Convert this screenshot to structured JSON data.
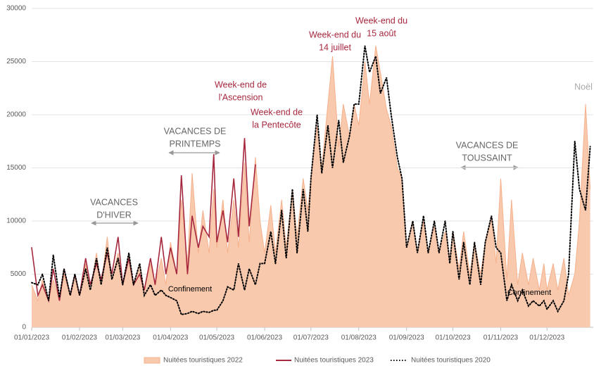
{
  "chart_data": {
    "type": "line",
    "x": [
      "01/01/2023",
      "05/01/2023",
      "08/01/2023",
      "12/01/2023",
      "15/01/2023",
      "19/01/2023",
      "22/01/2023",
      "26/01/2023",
      "29/01/2023",
      "01/02/2023",
      "05/02/2023",
      "08/02/2023",
      "12/02/2023",
      "15/02/2023",
      "19/02/2023",
      "22/02/2023",
      "26/02/2023",
      "01/03/2023",
      "05/03/2023",
      "08/03/2023",
      "12/03/2023",
      "15/03/2023",
      "19/03/2023",
      "22/03/2023",
      "26/03/2023",
      "29/03/2023",
      "01/04/2023",
      "05/04/2023",
      "08/04/2023",
      "12/04/2023",
      "15/04/2023",
      "19/04/2023",
      "22/04/2023",
      "26/04/2023",
      "29/04/2023",
      "01/05/2023",
      "05/05/2023",
      "08/05/2023",
      "12/05/2023",
      "15/05/2023",
      "19/05/2023",
      "22/05/2023",
      "26/05/2023",
      "29/05/2023",
      "01/06/2023",
      "05/06/2023",
      "08/06/2023",
      "12/06/2023",
      "15/06/2023",
      "19/06/2023",
      "22/06/2023",
      "26/06/2023",
      "29/06/2023",
      "01/07/2023",
      "05/07/2023",
      "08/07/2023",
      "12/07/2023",
      "15/07/2023",
      "19/07/2023",
      "22/07/2023",
      "26/07/2023",
      "29/07/2023",
      "01/08/2023",
      "05/08/2023",
      "08/08/2023",
      "12/08/2023",
      "15/08/2023",
      "19/08/2023",
      "22/08/2023",
      "26/08/2023",
      "29/08/2023",
      "01/09/2023",
      "05/09/2023",
      "08/09/2023",
      "12/09/2023",
      "15/09/2023",
      "19/09/2023",
      "22/09/2023",
      "26/09/2023",
      "29/09/2023",
      "01/10/2023",
      "05/10/2023",
      "08/10/2023",
      "12/10/2023",
      "15/10/2023",
      "19/10/2023",
      "22/10/2023",
      "26/10/2023",
      "29/10/2023",
      "01/11/2023",
      "05/11/2023",
      "08/11/2023",
      "12/11/2023",
      "15/11/2023",
      "19/11/2023",
      "22/11/2023",
      "26/11/2023",
      "29/11/2023",
      "01/12/2023",
      "05/12/2023",
      "08/12/2023",
      "12/12/2023",
      "15/12/2023",
      "19/12/2023",
      "22/12/2023",
      "26/12/2023",
      "29/12/2023"
    ],
    "series": [
      {
        "name": "Nuitées touristiques 2022",
        "color": "#f9c9ad",
        "style": "area",
        "values": [
          4000,
          2500,
          4500,
          2500,
          4500,
          2500,
          5000,
          3000,
          5000,
          3000,
          6000,
          3500,
          7000,
          4000,
          8500,
          4500,
          7000,
          4000,
          7000,
          4000,
          6000,
          3500,
          6000,
          4000,
          6500,
          4000,
          8000,
          5000,
          12000,
          6000,
          14500,
          7000,
          11000,
          7000,
          13000,
          7500,
          12000,
          7000,
          12000,
          7500,
          15500,
          8000,
          16000,
          10000,
          7000,
          11500,
          7000,
          12000,
          7500,
          13000,
          8500,
          14000,
          11000,
          14000,
          19000,
          15000,
          21000,
          25500,
          17000,
          21000,
          18000,
          21000,
          19000,
          25000,
          21000,
          26500,
          24000,
          20500,
          19000,
          15000,
          14000,
          7500,
          10000,
          7000,
          10000,
          7000,
          9500,
          7000,
          9000,
          6500,
          9000,
          5500,
          9000,
          5000,
          8000,
          5000,
          8000,
          10500,
          6000,
          14000,
          4500,
          12000,
          4000,
          7000,
          4000,
          6500,
          3500,
          6000,
          3500,
          6000,
          3500,
          6500,
          3000,
          5000,
          10000,
          21000,
          13000
        ]
      },
      {
        "name": "Nuitées touristiques 2023",
        "color": "#a6283e",
        "style": "solid",
        "values": [
          7500,
          3000,
          4000,
          2500,
          5500,
          2500,
          5500,
          3000,
          5000,
          3000,
          6500,
          4000,
          6000,
          4500,
          7000,
          5000,
          8500,
          4000,
          6500,
          4000,
          5000,
          3500,
          6500,
          4000,
          8500,
          5000,
          7500,
          5000,
          14300,
          5000,
          10500,
          7500,
          9500,
          8500,
          16300,
          8000,
          11000,
          8000,
          14000,
          8500,
          17800,
          9500,
          15300,
          null,
          null,
          null,
          null,
          null,
          null,
          null,
          null,
          null,
          null,
          null,
          null,
          null,
          null,
          null,
          null,
          null,
          null,
          null,
          null,
          null,
          null,
          null,
          null,
          null,
          null,
          null,
          null,
          null,
          null,
          null,
          null,
          null,
          null,
          null,
          null,
          null,
          null,
          null,
          null,
          null,
          null,
          null,
          null,
          null,
          null,
          null,
          null,
          null,
          null,
          null,
          null,
          null,
          null,
          null,
          null,
          null,
          null,
          null,
          null,
          null,
          null,
          null,
          null
        ]
      },
      {
        "name": "Nuitées touristiques 2020",
        "color": "#000000",
        "style": "dotted",
        "values": [
          4200,
          4000,
          5000,
          2500,
          6800,
          2800,
          5500,
          3000,
          5000,
          3000,
          5500,
          3500,
          6500,
          4000,
          7500,
          4500,
          6500,
          4000,
          7000,
          4000,
          6000,
          3000,
          4000,
          3000,
          3500,
          3000,
          2800,
          2500,
          1200,
          1300,
          1500,
          1300,
          1500,
          1400,
          1600,
          1600,
          2500,
          3800,
          3500,
          6000,
          3500,
          5500,
          4000,
          6000,
          6000,
          9000,
          6000,
          11000,
          6500,
          13000,
          7000,
          13000,
          9000,
          14000,
          20000,
          14500,
          19000,
          15000,
          19500,
          15500,
          18000,
          21000,
          21000,
          26500,
          24000,
          25500,
          22000,
          23500,
          20000,
          16000,
          14000,
          7500,
          10000,
          7000,
          10500,
          7000,
          10000,
          7000,
          10000,
          6000,
          9000,
          4500,
          8000,
          4000,
          8000,
          4000,
          8000,
          10500,
          7500,
          7000,
          2500,
          4000,
          2500,
          3500,
          2000,
          2500,
          2000,
          2500,
          1700,
          2500,
          1500,
          2500,
          5000,
          17500,
          13000,
          11000,
          17000
        ]
      }
    ],
    "xlim": [
      "01/01/2023",
      "31/12/2023"
    ],
    "xticks": [
      "01/01/2023",
      "01/02/2023",
      "01/03/2023",
      "01/04/2023",
      "01/05/2023",
      "01/06/2023",
      "01/07/2023",
      "01/08/2023",
      "01/09/2023",
      "01/10/2023",
      "01/11/2023",
      "01/12/2023"
    ],
    "ylim": [
      0,
      30000
    ],
    "yticks": [
      0,
      5000,
      10000,
      15000,
      20000,
      25000,
      30000
    ],
    "legend": "bottom",
    "annotations": [
      {
        "lines": [
          "VACANCES",
          "D'HIVER"
        ],
        "color": "#666666"
      },
      {
        "lines": [
          "VACANCES DE",
          "PRINTEMPS"
        ],
        "color": "#666666"
      },
      {
        "lines": [
          "Week-end de",
          "l'Ascension"
        ],
        "color": "#a6283e"
      },
      {
        "lines": [
          "Week-end de",
          "la Pentecôte"
        ],
        "color": "#a6283e"
      },
      {
        "lines": [
          "Week-end du",
          "14 juillet"
        ],
        "color": "#a6283e"
      },
      {
        "lines": [
          "Week-end du",
          "15 août"
        ],
        "color": "#a6283e"
      },
      {
        "lines": [
          "VACANCES DE",
          "TOUSSAINT"
        ],
        "color": "#666666"
      },
      {
        "lines": [
          "Noël"
        ],
        "color": "#aaaaaa"
      },
      {
        "lines": [
          "Confinement"
        ],
        "color": "#000000"
      },
      {
        "lines": [
          "Confinement"
        ],
        "color": "#000000"
      }
    ]
  }
}
